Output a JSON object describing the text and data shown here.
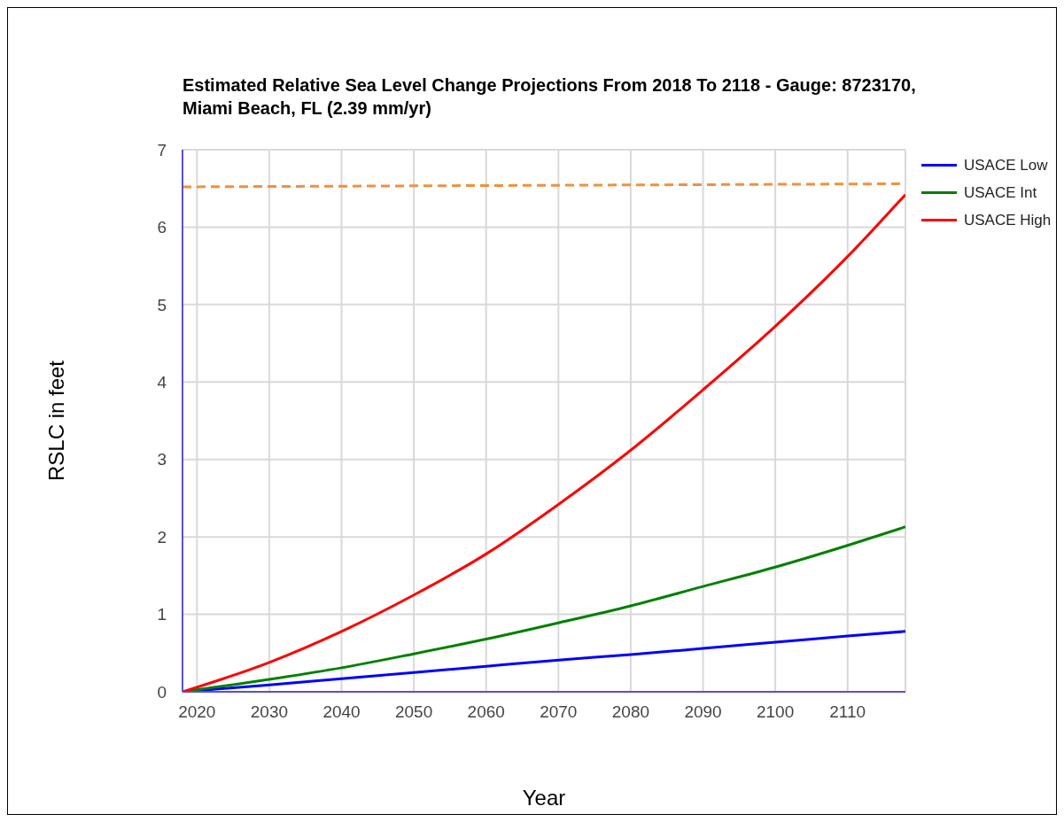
{
  "chart_data": {
    "type": "line",
    "title": "Estimated Relative Sea Level Change Projections From 2018 To 2118 - Gauge: 8723170, Miami Beach, FL (2.39 mm/yr)",
    "xlabel": "Year",
    "ylabel": "RSLC in feet",
    "x": [
      2018,
      2030,
      2040,
      2050,
      2060,
      2070,
      2080,
      2090,
      2100,
      2110,
      2118
    ],
    "series": [
      {
        "name": "USACE Low",
        "color": "#0000ff",
        "values": [
          0,
          0.09,
          0.17,
          0.25,
          0.33,
          0.41,
          0.48,
          0.56,
          0.64,
          0.72,
          0.78
        ]
      },
      {
        "name": "USACE Int",
        "color": "#008000",
        "values": [
          0,
          0.16,
          0.31,
          0.49,
          0.68,
          0.89,
          1.11,
          1.36,
          1.61,
          1.89,
          2.13
        ]
      },
      {
        "name": "USACE High",
        "color": "#ff0000",
        "values": [
          0,
          0.38,
          0.78,
          1.25,
          1.78,
          2.42,
          3.12,
          3.9,
          4.72,
          5.62,
          6.42
        ]
      },
      {
        "color": "#f0913c",
        "x": [
          2018,
          2118
        ],
        "values": [
          6.52,
          6.56
        ],
        "line_style": "dashed"
      }
    ],
    "xlim": [
      2018,
      2118
    ],
    "xticks": [
      2020,
      2030,
      2040,
      2050,
      2060,
      2070,
      2080,
      2090,
      2100,
      2110
    ],
    "ylim": [
      0,
      7
    ],
    "yticks": [
      0,
      1,
      2,
      3,
      4,
      5,
      6,
      7
    ],
    "grid": true,
    "legend": "right",
    "marker": "none",
    "line_style": "solid"
  }
}
